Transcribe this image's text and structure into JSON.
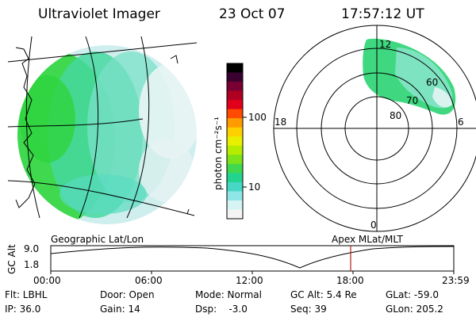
{
  "header": {
    "instrument": "Ultraviolet Imager",
    "date": "23 Oct 07",
    "time": "17:57:12 UT"
  },
  "colorbar": {
    "unit_label": "photon cm⁻²s⁻¹",
    "tick_labels": [
      "100",
      "10"
    ],
    "colors": [
      "#000000",
      "#3a0030",
      "#7a0033",
      "#b00022",
      "#e0001a",
      "#ff4a00",
      "#ff9a00",
      "#ffd000",
      "#e8f000",
      "#b6ec00",
      "#7ce21a",
      "#3fd84e",
      "#22d48e",
      "#46d8c4",
      "#8fe6e6",
      "#d6f4f4",
      "#f4f4f4"
    ]
  },
  "polar_plot": {
    "labels": [
      "12",
      "18",
      "6",
      "0",
      "60",
      "70",
      "80"
    ]
  },
  "timeline": {
    "left_title": "Geographic Lat/Lon",
    "right_title": "Apex  MLat/MLT",
    "y_axis_label": "GC Alt",
    "y_ticks": [
      "9.0",
      "1.8"
    ],
    "x_ticks": [
      "00:00",
      "06:00",
      "12:00",
      "18:00",
      "23:59"
    ],
    "current_time_marker": "17:57",
    "marker_color": "#b02020"
  },
  "status": {
    "flt": "Flt: LBHL",
    "ip": "IP: 36.0",
    "door": "Door: Open",
    "gain": "Gain: 14",
    "mode": "Mode: Normal",
    "dsp": "Dsp:    -3.0",
    "gcalt": "GC Alt: 5.4 Re",
    "seq": "Seq: 39",
    "glat": "GLat: -59.0",
    "glon": "GLon: 205.2"
  }
}
